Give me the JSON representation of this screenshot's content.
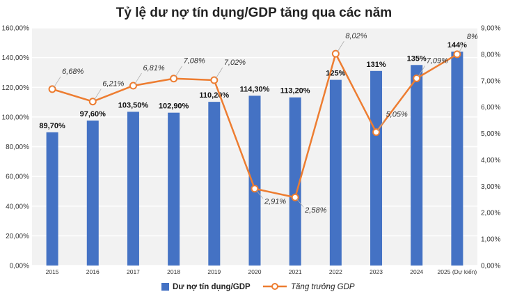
{
  "chart_data": {
    "type": "bar",
    "title": "Tỷ lệ dư nợ tín dụng/GDP tăng qua các năm",
    "categories": [
      "2015",
      "2016",
      "2017",
      "2018",
      "2019",
      "2020",
      "2021",
      "2022",
      "2023",
      "2024",
      "2025 (Dự kiến)"
    ],
    "series": [
      {
        "name": "Dư nợ tín dụng/GDP",
        "type": "bar",
        "axis": "left",
        "color": "#4472C4",
        "values": [
          89.7,
          97.6,
          103.5,
          102.9,
          110.2,
          114.3,
          113.2,
          125,
          131,
          135,
          144
        ],
        "labels": [
          "89,70%",
          "97,60%",
          "103,50%",
          "102,90%",
          "110,20%",
          "114,30%",
          "113,20%",
          "125%",
          "131%",
          "135%",
          "144%"
        ]
      },
      {
        "name": "Tăng trưởng GDP",
        "type": "line",
        "axis": "right",
        "color": "#ED7D31",
        "values": [
          6.68,
          6.21,
          6.81,
          7.08,
          7.02,
          2.91,
          2.58,
          8.02,
          5.05,
          7.09,
          8
        ],
        "labels": [
          "6,68%",
          "6,21%",
          "6,81%",
          "7,08%",
          "7,02%",
          "2,91%",
          "2,58%",
          "8,02%",
          "5,05%",
          "7,09%",
          "8%"
        ]
      }
    ],
    "y_left": {
      "ylim": [
        0,
        160
      ],
      "ticks": [
        "0,00%",
        "20,00%",
        "40,00%",
        "60,00%",
        "80,00%",
        "100,00%",
        "120,00%",
        "140,00%",
        "160,00%"
      ]
    },
    "y_right": {
      "ylim": [
        0,
        9
      ],
      "ticks": [
        "0,00%",
        "1,00%",
        "2,00%",
        "3,00%",
        "4,00%",
        "5,00%",
        "6,00%",
        "7,00%",
        "8,00%",
        "9,00%"
      ]
    },
    "grid": true,
    "legend_position": "bottom"
  }
}
